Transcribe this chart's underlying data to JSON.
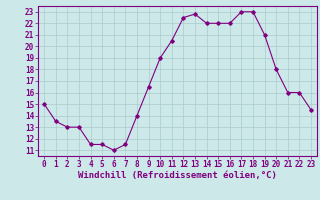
{
  "x": [
    0,
    1,
    2,
    3,
    4,
    5,
    6,
    7,
    8,
    9,
    10,
    11,
    12,
    13,
    14,
    15,
    16,
    17,
    18,
    19,
    20,
    21,
    22,
    23
  ],
  "y": [
    15.0,
    13.5,
    13.0,
    13.0,
    11.5,
    11.5,
    11.0,
    11.5,
    14.0,
    16.5,
    19.0,
    20.5,
    22.5,
    22.8,
    22.0,
    22.0,
    22.0,
    23.0,
    23.0,
    21.0,
    18.0,
    16.0,
    16.0,
    14.5
  ],
  "line_color": "#800080",
  "marker": "D",
  "marker_size": 1.8,
  "line_width": 0.8,
  "bg_color": "#cce8e8",
  "grid_color": "#aacccc",
  "xlabel": "Windchill (Refroidissement éolien,°C)",
  "xlabel_color": "#800080",
  "tick_color": "#800080",
  "ylim": [
    11,
    23
  ],
  "xlim": [
    -0.5,
    23.5
  ],
  "yticks": [
    11,
    12,
    13,
    14,
    15,
    16,
    17,
    18,
    19,
    20,
    21,
    22,
    23
  ],
  "xticks": [
    0,
    1,
    2,
    3,
    4,
    5,
    6,
    7,
    8,
    9,
    10,
    11,
    12,
    13,
    14,
    15,
    16,
    17,
    18,
    19,
    20,
    21,
    22,
    23
  ],
  "xtick_labels": [
    "0",
    "1",
    "2",
    "3",
    "4",
    "5",
    "6",
    "7",
    "8",
    "9",
    "10",
    "11",
    "12",
    "13",
    "14",
    "15",
    "16",
    "17",
    "18",
    "19",
    "20",
    "21",
    "22",
    "23"
  ],
  "ytick_labels": [
    "11",
    "12",
    "13",
    "14",
    "15",
    "16",
    "17",
    "18",
    "19",
    "20",
    "21",
    "22",
    "23"
  ],
  "tick_fontsize": 5.5,
  "xlabel_fontsize": 6.5
}
